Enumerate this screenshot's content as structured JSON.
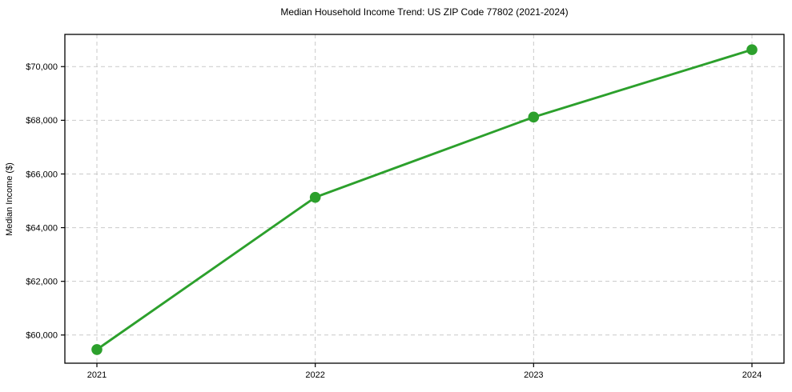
{
  "chart_data": {
    "type": "line",
    "title": "Median Household Income Trend: US ZIP Code 77802 (2021-2024)",
    "xlabel": "",
    "ylabel": "Median Income ($)",
    "categories": [
      "2021",
      "2022",
      "2023",
      "2024"
    ],
    "series": [
      {
        "name": "Median Household Income",
        "values": [
          59460,
          65130,
          68120,
          70630
        ]
      }
    ],
    "ylim": [
      58950,
      71200
    ],
    "yticks": [
      60000,
      62000,
      64000,
      66000,
      68000,
      70000
    ],
    "ytick_labels": [
      "$60,000",
      "$62,000",
      "$64,000",
      "$66,000",
      "$68,000",
      "$70,000"
    ],
    "grid": true,
    "grid_style": "dashed",
    "legend": false,
    "line_color": "#2ca02c",
    "marker": "circle",
    "grid_color": "#c9c9c9",
    "axis_color": "#000000",
    "text_color": "#000000",
    "background_color": "#ffffff"
  }
}
